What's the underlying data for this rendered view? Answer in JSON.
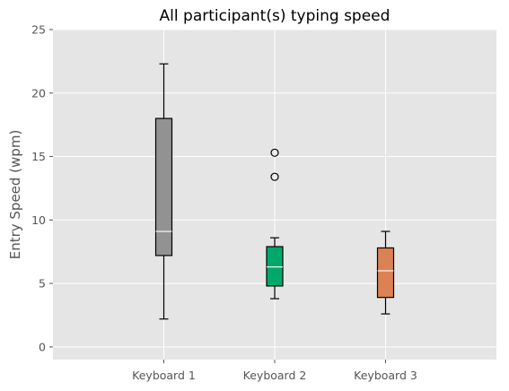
{
  "chart_data": {
    "type": "box",
    "title": "All participant(s) typing speed",
    "xlabel": "",
    "ylabel": "Entry Speed (wpm)",
    "ylim": [
      -1,
      25
    ],
    "yticks": [
      0,
      5,
      10,
      15,
      20,
      25
    ],
    "grid": true,
    "background_color": "#e5e5e5",
    "grid_color": "#ffffff",
    "categories": [
      "Keyboard 1",
      "Keyboard 2",
      "Keyboard 3"
    ],
    "boxes": [
      {
        "category": "Keyboard 1",
        "whisker_low": 2.2,
        "q1": 7.2,
        "median": 9.1,
        "q3": 18.0,
        "whisker_high": 22.3,
        "outliers": [],
        "color": "#929292"
      },
      {
        "category": "Keyboard 2",
        "whisker_low": 3.8,
        "q1": 4.8,
        "median": 6.3,
        "q3": 7.9,
        "whisker_high": 8.6,
        "outliers": [
          13.4,
          15.3
        ],
        "color": "#00a86b"
      },
      {
        "category": "Keyboard 3",
        "whisker_low": 2.6,
        "q1": 3.9,
        "median": 6.0,
        "q3": 7.8,
        "whisker_high": 9.1,
        "outliers": [],
        "color": "#dc8154"
      }
    ]
  }
}
